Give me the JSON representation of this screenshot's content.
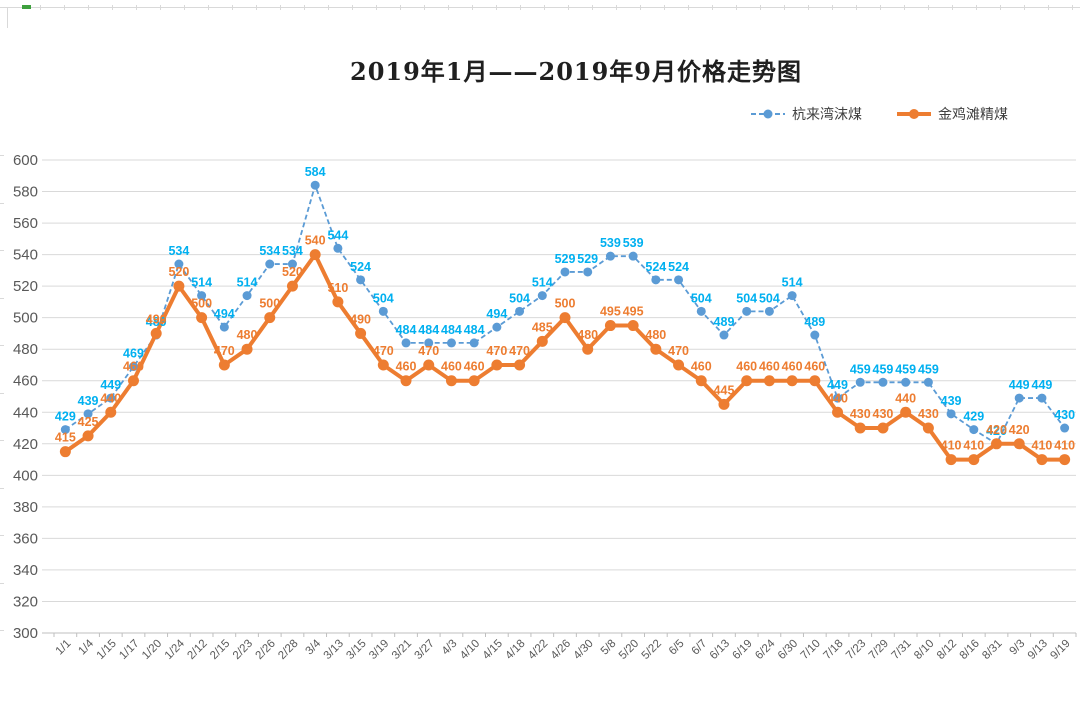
{
  "title": {
    "text": "2019年1月——2019年9月价格走势图"
  },
  "colors": {
    "blue_line": "#5B9BD5",
    "blue_label": "#00B0F0",
    "orange_line": "#ED7D31",
    "orange_label": "#ED7D31",
    "grid": "#D9D9D9",
    "axis": "#BFBFBF",
    "axis_text": "#595959"
  },
  "chart_data": {
    "type": "line",
    "title": "2019年1月——2019年9月价格走势图",
    "categories": [
      "1/1",
      "1/4",
      "1/15",
      "1/17",
      "1/20",
      "1/24",
      "2/12",
      "2/15",
      "2/23",
      "2/26",
      "2/28",
      "3/4",
      "3/13",
      "3/15",
      "3/19",
      "3/21",
      "3/27",
      "4/3",
      "4/10",
      "4/15",
      "4/18",
      "4/22",
      "4/26",
      "4/30",
      "5/8",
      "5/20",
      "5/22",
      "6/5",
      "6/7",
      "6/13",
      "6/19",
      "6/24",
      "6/30",
      "7/10",
      "7/18",
      "7/23",
      "7/29",
      "7/31",
      "8/10",
      "8/12",
      "8/16",
      "8/31",
      "9/3",
      "9/13",
      "9/19"
    ],
    "series": [
      {
        "name": "杭来湾沫煤",
        "line_style": "dashed",
        "color": "#5B9BD5",
        "label_color": "#00B0F0",
        "values": [
          429,
          439,
          449,
          469,
          489,
          534,
          514,
          494,
          514,
          534,
          534,
          584,
          544,
          524,
          504,
          484,
          484,
          484,
          484,
          494,
          504,
          514,
          529,
          529,
          539,
          539,
          524,
          524,
          504,
          489,
          504,
          504,
          514,
          489,
          449,
          459,
          459,
          459,
          459,
          439,
          429,
          420,
          449,
          449,
          430
        ]
      },
      {
        "name": "金鸡滩精煤",
        "line_style": "solid",
        "color": "#ED7D31",
        "label_color": "#ED7D31",
        "values": [
          415,
          425,
          440,
          460,
          490,
          520,
          500,
          470,
          480,
          500,
          520,
          540,
          510,
          490,
          470,
          460,
          470,
          460,
          460,
          470,
          470,
          485,
          500,
          480,
          495,
          495,
          480,
          470,
          460,
          445,
          460,
          460,
          460,
          460,
          440,
          430,
          430,
          440,
          430,
          410,
          410,
          420,
          420,
          410,
          410
        ]
      }
    ],
    "ylim": [
      300,
      600
    ],
    "ytick_step": 20,
    "y_ticks": [
      600,
      580,
      560,
      540,
      520,
      500,
      480,
      460,
      440,
      420,
      400,
      380,
      360,
      340,
      320,
      300
    ],
    "grid": true,
    "data_labels": true,
    "legend_position": "top-right"
  }
}
